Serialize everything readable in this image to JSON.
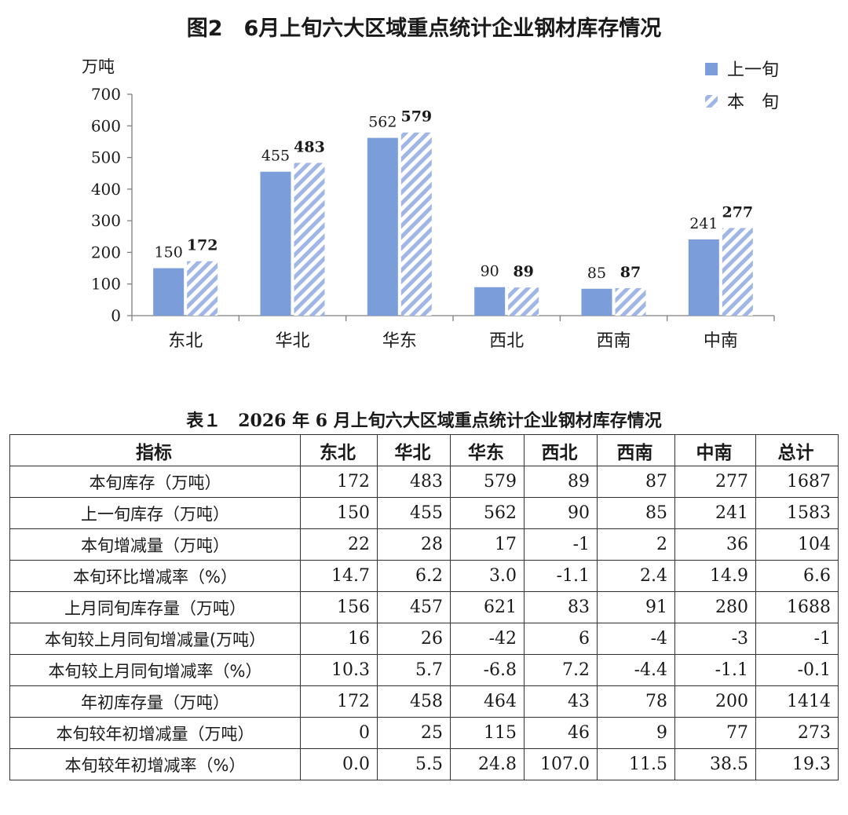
{
  "chart_title": "图2　6月上旬六大区域重点统计企业钢材库存情况",
  "chart_data": {
    "type": "bar",
    "title": "图2　6月上旬六大区域重点统计企业钢材库存情况",
    "ylabel": "万吨",
    "ylim": [
      0,
      700
    ],
    "yticks": [
      "0",
      "100",
      "200",
      "300",
      "400",
      "500",
      "600",
      "700"
    ],
    "categories": [
      "东北",
      "华北",
      "华东",
      "西北",
      "西南",
      "中南"
    ],
    "series": [
      {
        "name": "上一旬",
        "values": [
          150,
          455,
          562,
          90,
          85,
          241
        ],
        "color": "#7b9edb",
        "pattern": "solid"
      },
      {
        "name": "本　旬",
        "values": [
          172,
          483,
          579,
          89,
          87,
          277
        ],
        "color": "#9fb6e6",
        "pattern": "diagonal-stripes"
      }
    ],
    "legend_position": "top-right",
    "grid": false
  },
  "table": {
    "caption": "表１　2026 年 6 月上旬六大区域重点统计企业钢材库存情况",
    "headers": [
      "指标",
      "东北",
      "华北",
      "华东",
      "西北",
      "西南",
      "中南",
      "总计"
    ],
    "rows": [
      {
        "label": "本旬库存（万吨）",
        "values": [
          "172",
          "483",
          "579",
          "89",
          "87",
          "277",
          "1687"
        ]
      },
      {
        "label": "上一旬库存（万吨）",
        "values": [
          "150",
          "455",
          "562",
          "90",
          "85",
          "241",
          "1583"
        ]
      },
      {
        "label": "本旬增减量（万吨）",
        "values": [
          "22",
          "28",
          "17",
          "-1",
          "2",
          "36",
          "104"
        ]
      },
      {
        "label": "本旬环比增减率（%）",
        "values": [
          "14.7",
          "6.2",
          "3.0",
          "-1.1",
          "2.4",
          "14.9",
          "6.6"
        ]
      },
      {
        "label": "上月同旬库存量（万吨）",
        "values": [
          "156",
          "457",
          "621",
          "83",
          "91",
          "280",
          "1688"
        ]
      },
      {
        "label": "本旬较上月同旬增减量(万吨）",
        "values": [
          "16",
          "26",
          "-42",
          "6",
          "-4",
          "-3",
          "-1"
        ]
      },
      {
        "label": "本旬较上月同旬增减率（%）",
        "values": [
          "10.3",
          "5.7",
          "-6.8",
          "7.2",
          "-4.4",
          "-1.1",
          "-0.1"
        ]
      },
      {
        "label": "年初库存量（万吨）",
        "values": [
          "172",
          "458",
          "464",
          "43",
          "78",
          "200",
          "1414"
        ]
      },
      {
        "label": "本旬较年初增减量（万吨）",
        "values": [
          "0",
          "25",
          "115",
          "46",
          "9",
          "77",
          "273"
        ]
      },
      {
        "label": "本旬较年初增减率（%）",
        "values": [
          "0.0",
          "5.5",
          "24.8",
          "107.0",
          "11.5",
          "38.5",
          "19.3"
        ]
      }
    ]
  }
}
